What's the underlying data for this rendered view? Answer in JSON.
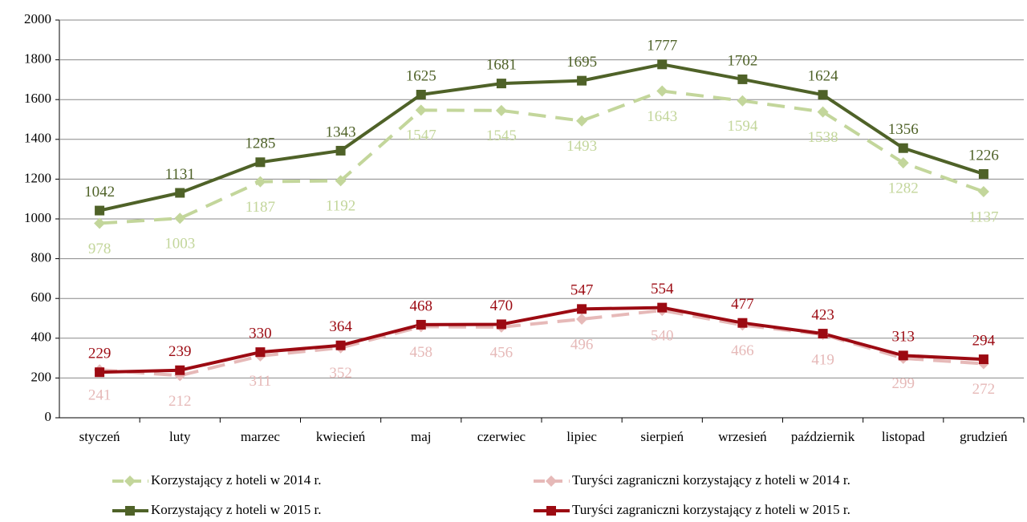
{
  "chart_data": {
    "type": "line",
    "categories": [
      "styczeń",
      "luty",
      "marzec",
      "kwiecień",
      "maj",
      "czerwiec",
      "lipiec",
      "sierpień",
      "wrzesień",
      "październik",
      "listopad",
      "grudzień"
    ],
    "series": [
      {
        "name": "Korzystający z hoteli w 2014 r.",
        "color": "#c3d69b",
        "dash": true,
        "marker": "diamond",
        "values": [
          978,
          1003,
          1187,
          1192,
          1547,
          1545,
          1493,
          1643,
          1594,
          1538,
          1282,
          1137
        ]
      },
      {
        "name": "Turyści zagraniczni korzystający z hoteli w 2014 r.",
        "color": "#e6b9b8",
        "dash": true,
        "marker": "diamond",
        "values": [
          241,
          212,
          311,
          352,
          458,
          456,
          496,
          540,
          466,
          419,
          299,
          272
        ]
      },
      {
        "name": "Korzystający z hoteli w 2015 r.",
        "color": "#4f6228",
        "dash": false,
        "marker": "square",
        "values": [
          1042,
          1131,
          1285,
          1343,
          1625,
          1681,
          1695,
          1777,
          1702,
          1624,
          1356,
          1226
        ]
      },
      {
        "name": "Turyści zagraniczni korzystający z hoteli w 2015 r.",
        "color": "#9c0a12",
        "dash": false,
        "marker": "square",
        "values": [
          229,
          239,
          330,
          364,
          468,
          470,
          547,
          554,
          477,
          423,
          313,
          294
        ]
      }
    ],
    "ylim": [
      0,
      2000
    ],
    "yticks": [
      0,
      200,
      400,
      600,
      800,
      1000,
      1200,
      1400,
      1600,
      1800,
      2000
    ],
    "grid": true
  }
}
